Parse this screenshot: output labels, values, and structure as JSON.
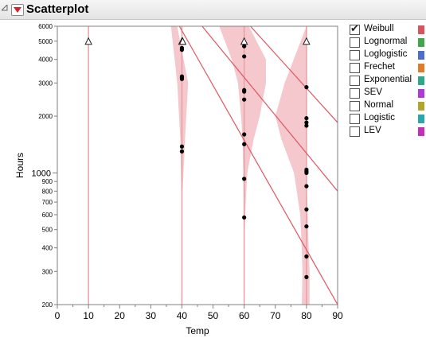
{
  "window": {
    "title": "Scatterplot"
  },
  "legend": {
    "items": [
      {
        "label": "Weibull",
        "checked": true,
        "color": "#d9545c"
      },
      {
        "label": "Lognormal",
        "checked": false,
        "color": "#3fa84b"
      },
      {
        "label": "Loglogistic",
        "checked": false,
        "color": "#4a6fd1"
      },
      {
        "label": "Frechet",
        "checked": false,
        "color": "#e07b2a"
      },
      {
        "label": "Exponential",
        "checked": false,
        "color": "#2fa88a"
      },
      {
        "label": "SEV",
        "checked": false,
        "color": "#b03ad6"
      },
      {
        "label": "Normal",
        "checked": false,
        "color": "#b3a52b"
      },
      {
        "label": "Logistic",
        "checked": false,
        "color": "#2aa6b0"
      },
      {
        "label": "LEV",
        "checked": false,
        "color": "#c22fb8"
      }
    ]
  },
  "chart_data": {
    "type": "scatter",
    "xlabel": "Temp",
    "ylabel": "Hours",
    "xlim": [
      0,
      90
    ],
    "ylim": [
      200,
      6000
    ],
    "y_scale": "log",
    "x_ticks": [
      0,
      10,
      20,
      30,
      40,
      50,
      60,
      70,
      80,
      90
    ],
    "y_ticks": [
      200,
      300,
      400,
      500,
      600,
      700,
      800,
      900,
      1000,
      2000,
      3000,
      4000,
      5000,
      6000
    ],
    "y_tick_labels": [
      "200",
      "300",
      "400",
      "500",
      "600",
      "700",
      "800",
      "900",
      "1000",
      "2000",
      "3000",
      "4000",
      "5000",
      "6000"
    ],
    "points": [
      {
        "x": 40,
        "y": 4600
      },
      {
        "x": 40,
        "y": 4500
      },
      {
        "x": 40,
        "y": 3250
      },
      {
        "x": 40,
        "y": 3200
      },
      {
        "x": 40,
        "y": 3150
      },
      {
        "x": 40,
        "y": 1380
      },
      {
        "x": 40,
        "y": 1300
      },
      {
        "x": 60,
        "y": 4700
      },
      {
        "x": 60,
        "y": 4150
      },
      {
        "x": 60,
        "y": 2750
      },
      {
        "x": 60,
        "y": 2700
      },
      {
        "x": 60,
        "y": 2450
      },
      {
        "x": 60,
        "y": 1600
      },
      {
        "x": 60,
        "y": 1420
      },
      {
        "x": 60,
        "y": 930
      },
      {
        "x": 60,
        "y": 580
      },
      {
        "x": 80,
        "y": 2850
      },
      {
        "x": 80,
        "y": 1950
      },
      {
        "x": 80,
        "y": 1850
      },
      {
        "x": 80,
        "y": 1780
      },
      {
        "x": 80,
        "y": 1040
      },
      {
        "x": 80,
        "y": 1020
      },
      {
        "x": 80,
        "y": 1000
      },
      {
        "x": 80,
        "y": 850
      },
      {
        "x": 80,
        "y": 640
      },
      {
        "x": 80,
        "y": 520
      },
      {
        "x": 80,
        "y": 360
      },
      {
        "x": 80,
        "y": 280
      }
    ],
    "censored_markers": [
      {
        "x": 10,
        "y": 5000
      },
      {
        "x": 40,
        "y": 5000
      },
      {
        "x": 40,
        "y": 5000
      },
      {
        "x": 60,
        "y": 5000
      },
      {
        "x": 80,
        "y": 5000
      }
    ],
    "fit_lines": [
      {
        "name": "line-1",
        "points": [
          [
            39.2,
            6000
          ],
          [
            90,
            200
          ]
        ]
      },
      {
        "name": "line-2",
        "points": [
          [
            46.5,
            6000
          ],
          [
            90,
            800
          ]
        ]
      },
      {
        "name": "line-3",
        "points": [
          [
            62,
            6000
          ],
          [
            90,
            1850
          ]
        ]
      }
    ],
    "bands": [
      {
        "name": "band-40",
        "upper": [
          [
            38.5,
            6000
          ],
          [
            42,
            3000
          ],
          [
            41,
            1500
          ],
          [
            40.5,
            1000
          ],
          [
            40.2,
            800
          ]
        ],
        "lower": [
          [
            36.5,
            6000
          ],
          [
            38.5,
            3000
          ],
          [
            39.5,
            1500
          ],
          [
            39.7,
            1000
          ],
          [
            39.8,
            800
          ]
        ]
      },
      {
        "name": "band-60",
        "upper": [
          [
            61.5,
            6000
          ],
          [
            67,
            4000
          ],
          [
            67,
            3000
          ],
          [
            65,
            2000
          ],
          [
            63,
            1500
          ],
          [
            61,
            1000
          ],
          [
            60.5,
            700
          ],
          [
            60.2,
            500
          ]
        ],
        "lower": [
          [
            52,
            6000
          ],
          [
            56,
            4000
          ],
          [
            58,
            3000
          ],
          [
            59,
            2000
          ],
          [
            59.5,
            1500
          ],
          [
            59.7,
            1000
          ],
          [
            59.8,
            700
          ],
          [
            59.8,
            500
          ]
        ]
      },
      {
        "name": "band-80",
        "upper": [
          [
            80,
            6000
          ],
          [
            80,
            1000
          ],
          [
            80.5,
            500
          ],
          [
            81,
            300
          ],
          [
            81,
            200
          ]
        ],
        "lower": [
          [
            73,
            3000
          ],
          [
            70,
            2000
          ],
          [
            72,
            1500
          ],
          [
            76,
            1000
          ],
          [
            78,
            600
          ],
          [
            78.5,
            400
          ],
          [
            78.7,
            300
          ],
          [
            78.5,
            200
          ]
        ]
      }
    ],
    "colors": {
      "band": "#f4c8cc",
      "fit_line": "#e05560",
      "vline": "#e8a0a6",
      "point": "#000000",
      "frame": "#808080"
    }
  }
}
